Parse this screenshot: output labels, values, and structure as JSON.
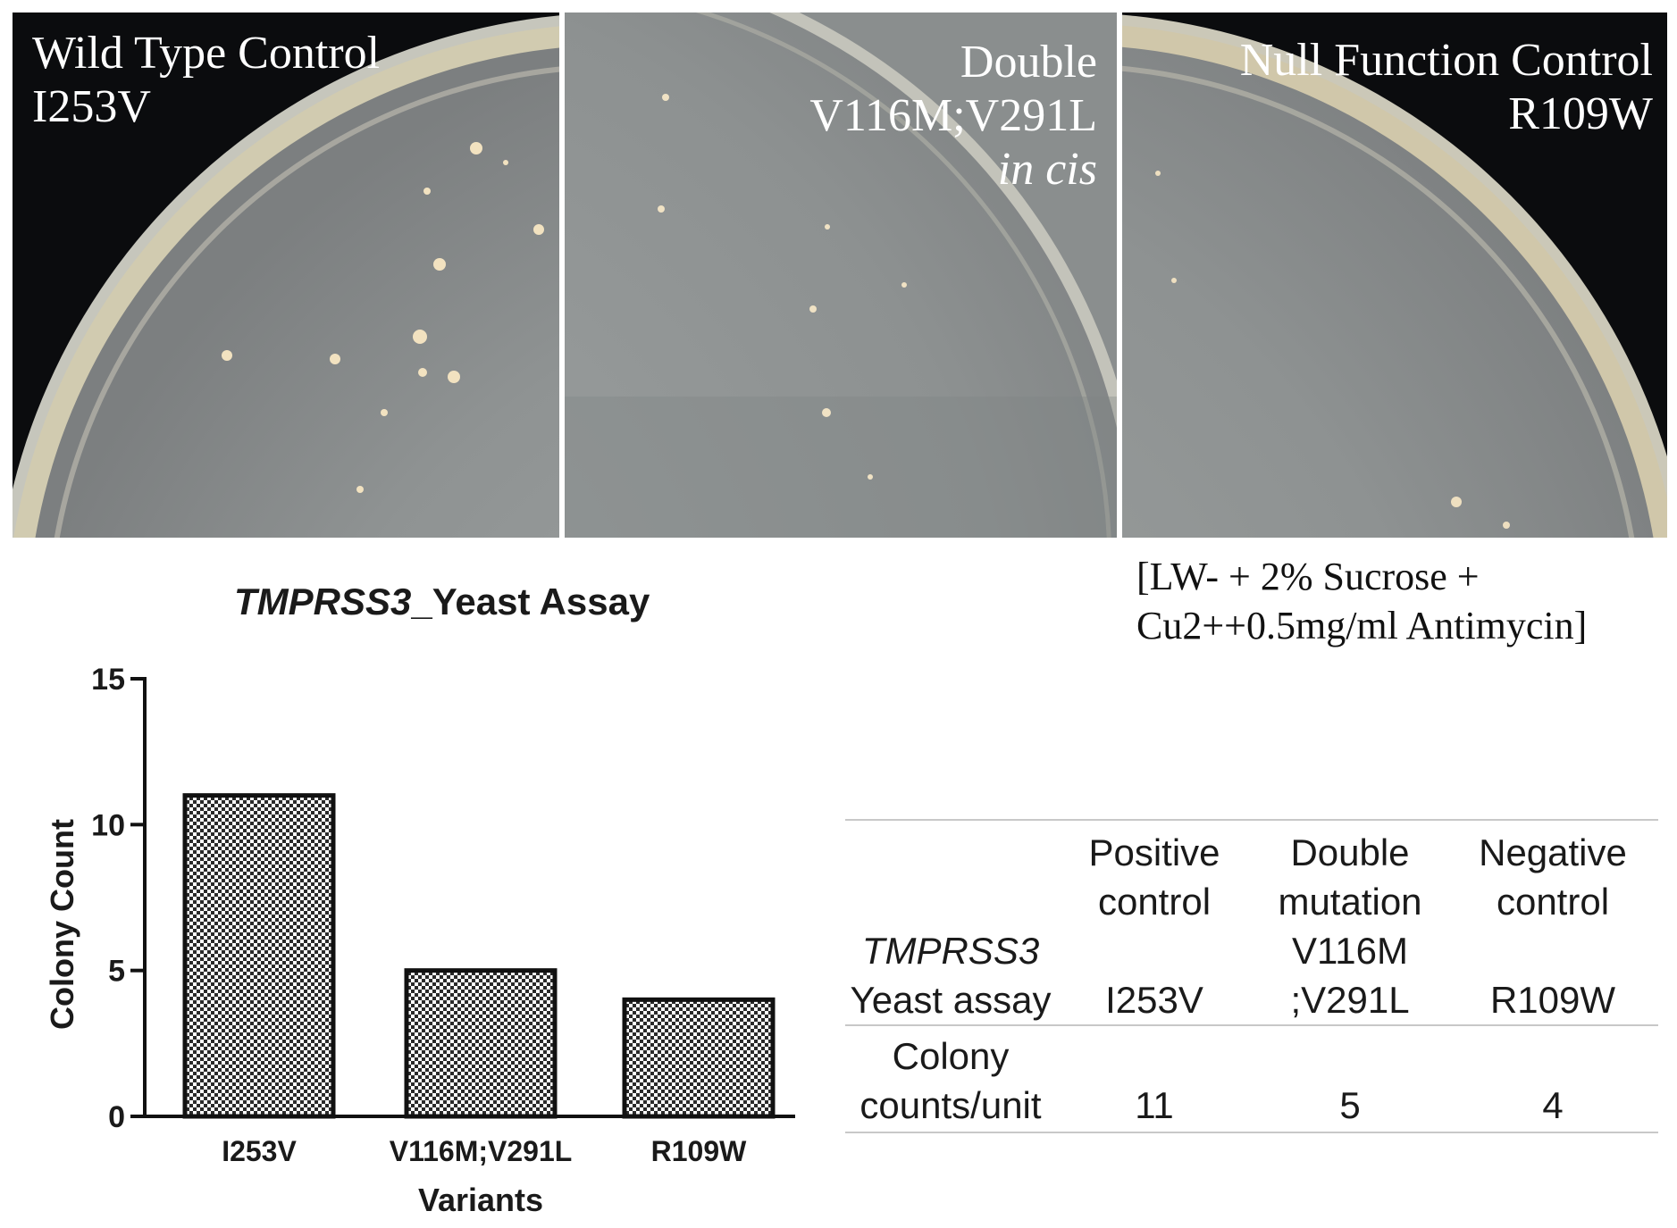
{
  "plates": [
    {
      "label_lines": [
        "Wild Type Control",
        "I253V"
      ],
      "italic_line": ""
    },
    {
      "label_lines": [
        "Double",
        "V116M;V291L"
      ],
      "italic_line": "in cis"
    },
    {
      "label_lines": [
        "Null Function Control",
        "R109W"
      ],
      "italic_line": ""
    }
  ],
  "medium": {
    "line1": "[LW- + 2% Sucrose +",
    "line2": "Cu2++0.5mg/ml Antimycin]"
  },
  "chart_title": {
    "gene": "TMPRSS3",
    "suffix": "_Yeast Assay"
  },
  "chart_data": {
    "type": "bar",
    "title": "TMPRSS3_Yeast Assay",
    "categories": [
      "I253V",
      "V116M;V291L",
      "R109W"
    ],
    "values": [
      11,
      5,
      4
    ],
    "xlabel": "Variants",
    "ylabel": "Colony Count",
    "ylim": [
      0,
      15
    ],
    "yticks": [
      "0",
      "5",
      "10",
      "15"
    ],
    "grid": false,
    "bar_fill": "checkered"
  },
  "table": {
    "row_header": {
      "gene": "TMPRSS3",
      "label": "Yeast assay"
    },
    "columns": [
      {
        "lines": [
          "Positive",
          "control",
          "",
          "I253V"
        ]
      },
      {
        "lines": [
          "Double",
          "mutation",
          "V116M",
          ";V291L"
        ]
      },
      {
        "lines": [
          "Negative",
          "control",
          "",
          "R109W"
        ]
      }
    ],
    "count_label_lines": [
      "Colony",
      "counts/unit"
    ],
    "counts": [
      "11",
      "5",
      "4"
    ]
  },
  "colors": {
    "plate_background": "#0b0c0e",
    "agar": "#9a9e9e",
    "colony": "#f2e2c0",
    "bar_edge": "#111111",
    "text": "#1a1a1a"
  }
}
